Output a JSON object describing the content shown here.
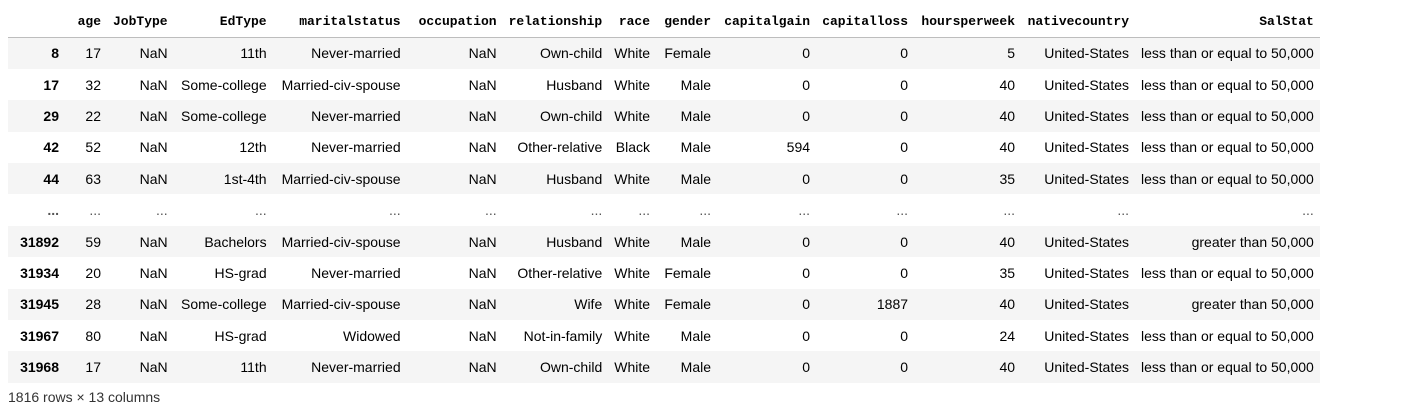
{
  "table": {
    "columns": [
      "",
      "age",
      "JobType",
      "EdType",
      "maritalstatus",
      "occupation",
      "relationship",
      "race",
      "gender",
      "capitalgain",
      "capitalloss",
      "hoursperweek",
      "nativecountry",
      "SalStat"
    ],
    "rows": [
      [
        "8",
        "17",
        "NaN",
        "11th",
        "Never-married",
        "NaN",
        "Own-child",
        "White",
        "Female",
        "0",
        "0",
        "5",
        "United-States",
        "less than or equal to 50,000"
      ],
      [
        "17",
        "32",
        "NaN",
        "Some-college",
        "Married-civ-spouse",
        "NaN",
        "Husband",
        "White",
        "Male",
        "0",
        "0",
        "40",
        "United-States",
        "less than or equal to 50,000"
      ],
      [
        "29",
        "22",
        "NaN",
        "Some-college",
        "Never-married",
        "NaN",
        "Own-child",
        "White",
        "Male",
        "0",
        "0",
        "40",
        "United-States",
        "less than or equal to 50,000"
      ],
      [
        "42",
        "52",
        "NaN",
        "12th",
        "Never-married",
        "NaN",
        "Other-relative",
        "Black",
        "Male",
        "594",
        "0",
        "40",
        "United-States",
        "less than or equal to 50,000"
      ],
      [
        "44",
        "63",
        "NaN",
        "1st-4th",
        "Married-civ-spouse",
        "NaN",
        "Husband",
        "White",
        "Male",
        "0",
        "0",
        "35",
        "United-States",
        "less than or equal to 50,000"
      ],
      [
        "...",
        "...",
        "...",
        "...",
        "...",
        "...",
        "...",
        "...",
        "...",
        "...",
        "...",
        "...",
        "...",
        "..."
      ],
      [
        "31892",
        "59",
        "NaN",
        "Bachelors",
        "Married-civ-spouse",
        "NaN",
        "Husband",
        "White",
        "Male",
        "0",
        "0",
        "40",
        "United-States",
        "greater than 50,000"
      ],
      [
        "31934",
        "20",
        "NaN",
        "HS-grad",
        "Never-married",
        "NaN",
        "Other-relative",
        "White",
        "Female",
        "0",
        "0",
        "35",
        "United-States",
        "less than or equal to 50,000"
      ],
      [
        "31945",
        "28",
        "NaN",
        "Some-college",
        "Married-civ-spouse",
        "NaN",
        "Wife",
        "White",
        "Female",
        "0",
        "1887",
        "40",
        "United-States",
        "greater than 50,000"
      ],
      [
        "31967",
        "80",
        "NaN",
        "HS-grad",
        "Widowed",
        "NaN",
        "Not-in-family",
        "White",
        "Male",
        "0",
        "0",
        "24",
        "United-States",
        "less than or equal to 50,000"
      ],
      [
        "31968",
        "17",
        "NaN",
        "11th",
        "Never-married",
        "NaN",
        "Own-child",
        "White",
        "Male",
        "0",
        "0",
        "40",
        "United-States",
        "less than or equal to 50,000"
      ]
    ]
  },
  "caption": "1816 rows × 13 columns"
}
